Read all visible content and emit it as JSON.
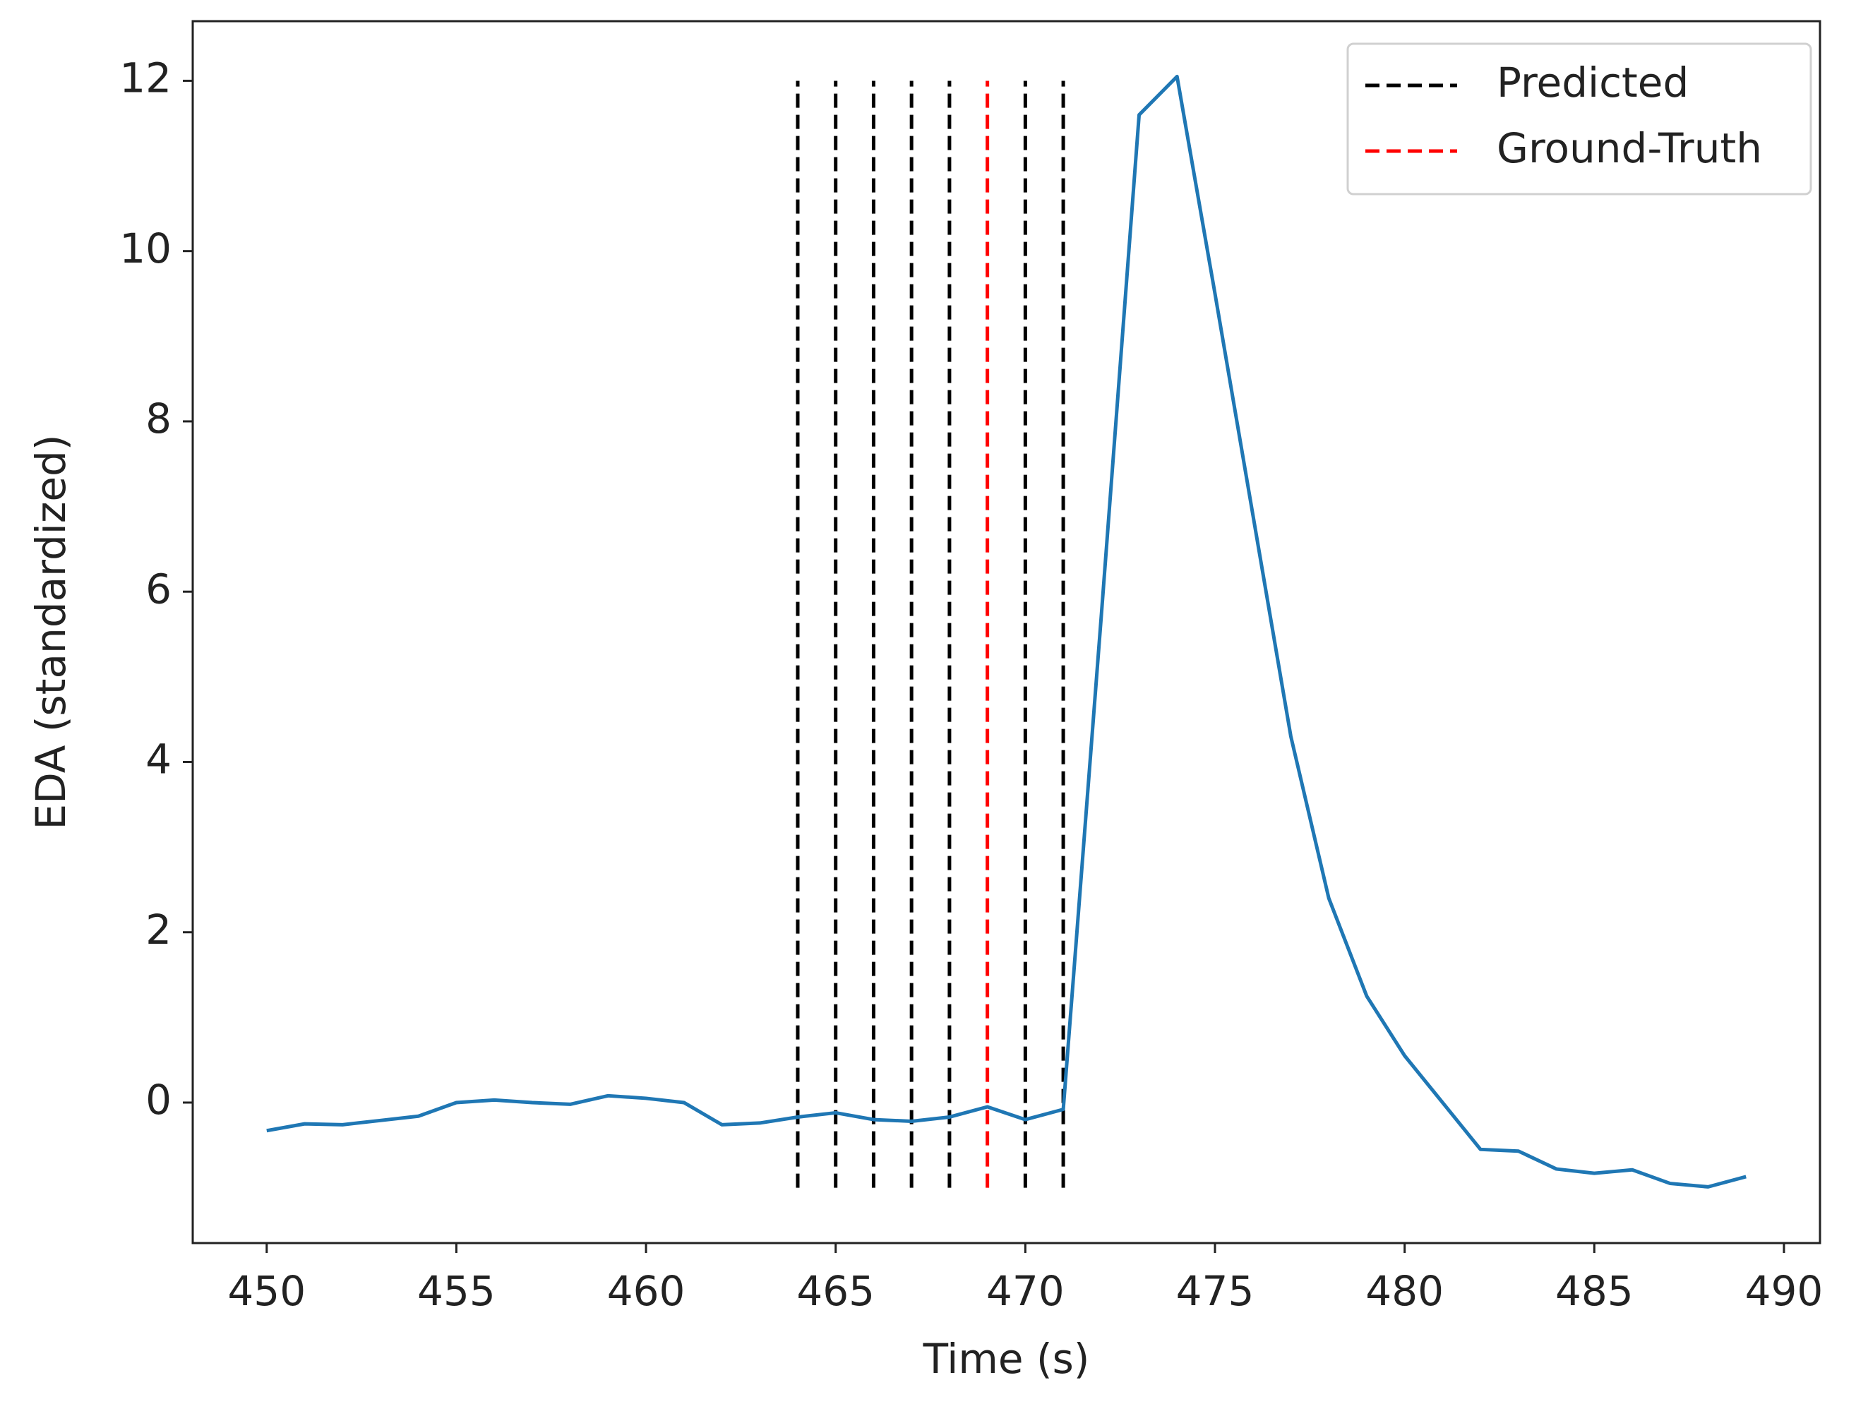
{
  "chart_data": {
    "type": "line",
    "xlabel": "Time (s)",
    "ylabel": "EDA (standardized)",
    "x": [
      450,
      451,
      452,
      453,
      454,
      455,
      456,
      457,
      458,
      459,
      460,
      461,
      462,
      463,
      464,
      465,
      466,
      467,
      468,
      469,
      470,
      471,
      472,
      473,
      474,
      475,
      476,
      477,
      478,
      479,
      480,
      481,
      482,
      483,
      484,
      485,
      486,
      487,
      488,
      489
    ],
    "series": [
      {
        "color": "#1f77b4",
        "values": [
          -0.33,
          -0.25,
          -0.26,
          -0.21,
          -0.16,
          0.0,
          0.03,
          0.0,
          -0.02,
          0.08,
          0.05,
          0.0,
          -0.26,
          -0.24,
          -0.17,
          -0.12,
          -0.2,
          -0.22,
          -0.17,
          -0.05,
          -0.2,
          -0.08,
          5.7,
          11.6,
          12.05,
          9.5,
          6.9,
          4.3,
          2.4,
          1.25,
          0.55,
          0.0,
          -0.55,
          -0.57,
          -0.78,
          -0.83,
          -0.79,
          -0.95,
          -0.99,
          -0.87
        ]
      }
    ],
    "vlines": [
      {
        "name": "Predicted",
        "color": "#000000",
        "x": [
          464,
          465,
          466,
          467,
          468,
          470,
          471
        ]
      },
      {
        "name": "Ground-Truth",
        "color": "#ff0000",
        "x": [
          469
        ]
      }
    ],
    "vline_range": [
      -1,
      12
    ],
    "xlim": [
      448.05,
      490.95
    ],
    "ylim": [
      -1.65,
      12.7
    ],
    "xticks": [
      450,
      455,
      460,
      465,
      470,
      475,
      480,
      485,
      490
    ],
    "yticks": [
      0,
      2,
      4,
      6,
      8,
      10,
      12
    ],
    "legend": "upper-right"
  }
}
